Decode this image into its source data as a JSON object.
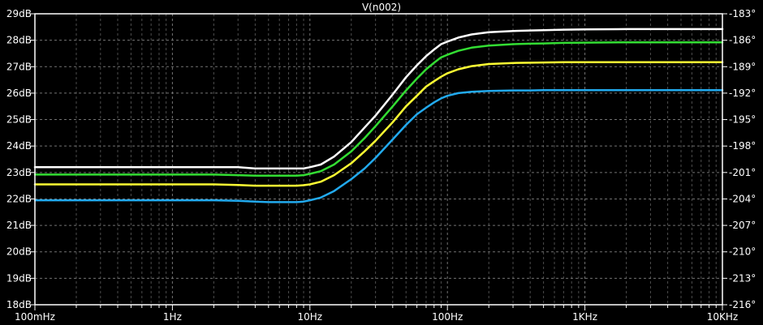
{
  "chart_data": {
    "type": "line",
    "title": "V(n002)",
    "xlabel": "",
    "ylabel": "",
    "x_scale": "log",
    "xlim": [
      0.1,
      10000
    ],
    "ylim": [
      18,
      29
    ],
    "y2lim": [
      -216,
      -183
    ],
    "background_color": "#000000",
    "axis_color": "#ffffff",
    "grid": true,
    "grid_color": "#808080",
    "x_tick_labels": [
      "100mHz",
      "1Hz",
      "10Hz",
      "100Hz",
      "1KHz",
      "10KHz"
    ],
    "x_tick_values": [
      0.1,
      1,
      10,
      100,
      1000,
      10000
    ],
    "y_tick_labels": [
      "18dB",
      "19dB",
      "20dB",
      "21dB",
      "22dB",
      "23dB",
      "24dB",
      "25dB",
      "26dB",
      "27dB",
      "28dB",
      "29dB"
    ],
    "y_tick_values": [
      18,
      19,
      20,
      21,
      22,
      23,
      24,
      25,
      26,
      27,
      28,
      29
    ],
    "y2_tick_labels": [
      "-216°",
      "-213°",
      "-210°",
      "-207°",
      "-204°",
      "-201°",
      "-198°",
      "-195°",
      "-192°",
      "-189°",
      "-186°",
      "-183°"
    ],
    "y2_tick_values": [
      -216,
      -213,
      -210,
      -207,
      -204,
      -201,
      -198,
      -195,
      -192,
      -189,
      -186,
      -183
    ],
    "x": [
      0.1,
      0.3,
      1,
      2,
      3,
      4,
      5,
      6,
      7,
      8,
      9,
      10,
      12,
      15,
      20,
      25,
      30,
      40,
      50,
      60,
      70,
      80,
      90,
      100,
      120,
      150,
      200,
      300,
      400,
      500,
      700,
      1000,
      2000,
      5000,
      10000
    ],
    "series": [
      {
        "color": "#ffffff",
        "values": [
          23.2,
          23.2,
          23.2,
          23.2,
          23.2,
          23.15,
          23.15,
          23.15,
          23.15,
          23.15,
          23.15,
          23.2,
          23.3,
          23.6,
          24.15,
          24.7,
          25.15,
          25.95,
          26.6,
          27.05,
          27.4,
          27.65,
          27.85,
          27.95,
          28.1,
          28.22,
          28.3,
          28.35,
          28.37,
          28.38,
          28.4,
          28.41,
          28.42,
          28.42,
          28.42
        ]
      },
      {
        "color": "#33dd33",
        "values": [
          22.92,
          22.92,
          22.92,
          22.92,
          22.9,
          22.88,
          22.88,
          22.88,
          22.88,
          22.88,
          22.9,
          22.95,
          23.05,
          23.3,
          23.8,
          24.3,
          24.75,
          25.5,
          26.1,
          26.55,
          26.9,
          27.15,
          27.35,
          27.45,
          27.6,
          27.72,
          27.8,
          27.85,
          27.87,
          27.88,
          27.9,
          27.91,
          27.92,
          27.92,
          27.92
        ]
      },
      {
        "color": "#ffff33",
        "values": [
          22.55,
          22.55,
          22.55,
          22.55,
          22.53,
          22.5,
          22.5,
          22.5,
          22.5,
          22.5,
          22.52,
          22.55,
          22.65,
          22.9,
          23.35,
          23.8,
          24.2,
          24.9,
          25.5,
          25.9,
          26.25,
          26.45,
          26.62,
          26.75,
          26.9,
          27.02,
          27.1,
          27.14,
          27.15,
          27.16,
          27.17,
          27.17,
          27.17,
          27.17,
          27.17
        ]
      },
      {
        "color": "#22aaee",
        "values": [
          21.95,
          21.95,
          21.95,
          21.95,
          21.93,
          21.9,
          21.88,
          21.88,
          21.88,
          21.88,
          21.9,
          21.95,
          22.05,
          22.3,
          22.75,
          23.15,
          23.55,
          24.25,
          24.8,
          25.2,
          25.45,
          25.65,
          25.8,
          25.9,
          26.0,
          26.05,
          26.08,
          26.1,
          26.1,
          26.11,
          26.11,
          26.11,
          26.11,
          26.11,
          26.11
        ]
      }
    ]
  }
}
